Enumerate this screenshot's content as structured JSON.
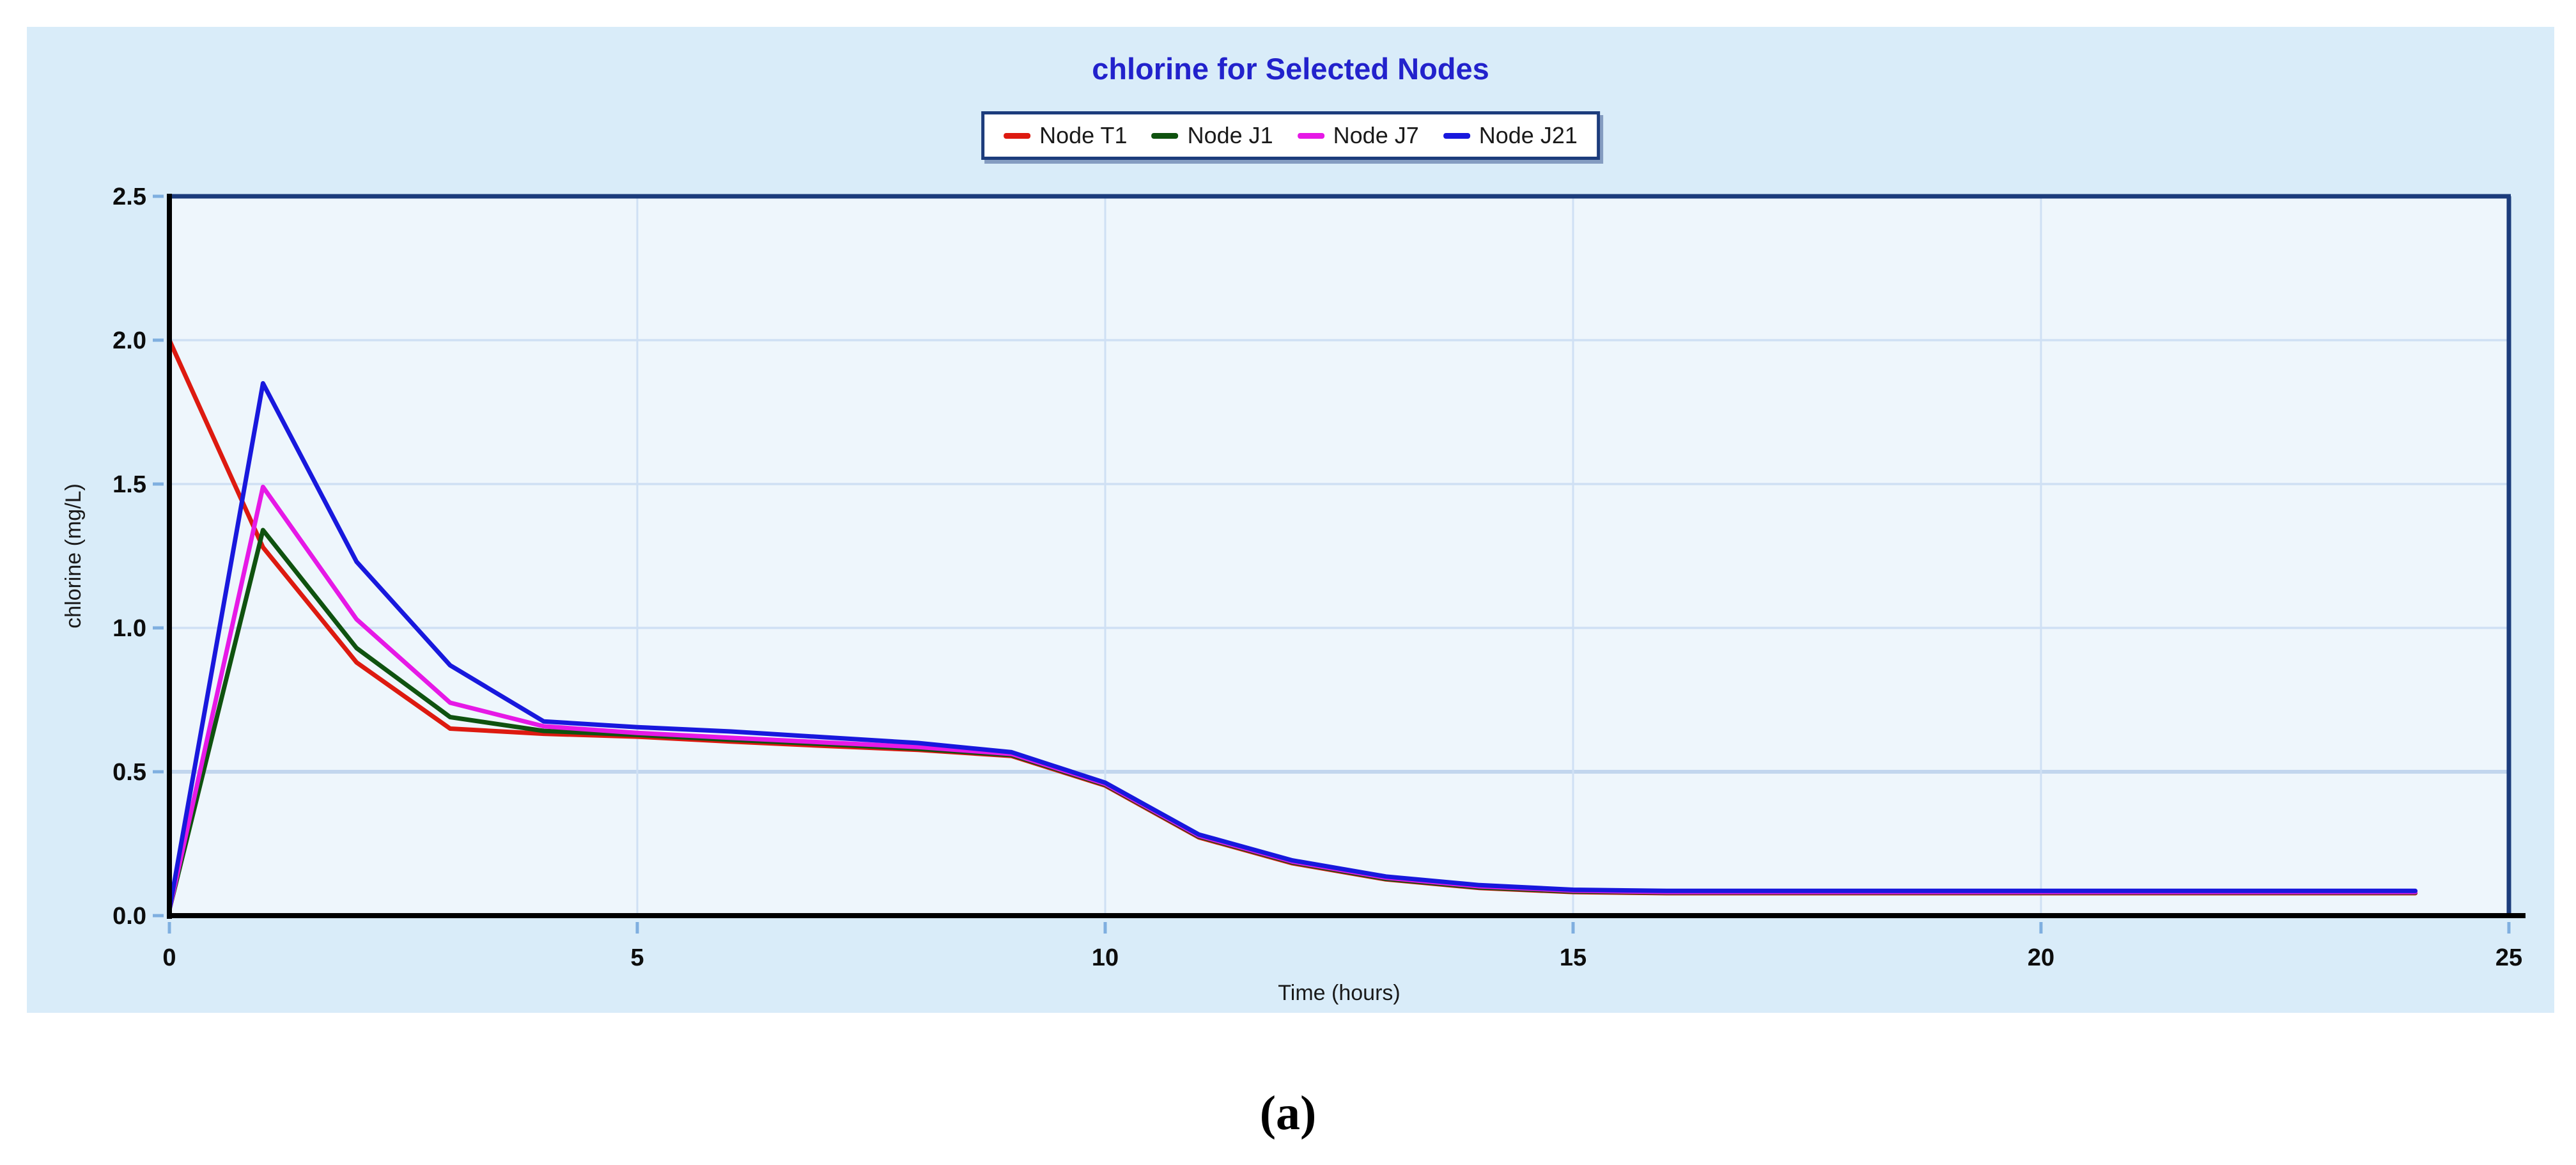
{
  "caption": "(a)",
  "style_colors": {
    "panel_bg": "#d9ecf9",
    "plot_bg": "#eef6fc",
    "frame": "#1c3c7c",
    "axis": "#000000",
    "grid": "#cfe0f4",
    "grid_bold": "#c2d6ee",
    "tick": "#7fafe0",
    "legend_border": "#1c3c7c",
    "legend_bg": "#ffffff"
  },
  "chart_data": {
    "type": "line",
    "title": "chlorine for Selected Nodes",
    "title_color": "#2222cc",
    "xlabel": "Time (hours)",
    "ylabel": "chlorine (mg/L)",
    "xlim": [
      0,
      25
    ],
    "ylim": [
      0,
      2.5
    ],
    "x_tick_labels": [
      "0",
      "5",
      "10",
      "15",
      "20",
      "25"
    ],
    "y_tick_labels": [
      "0.0",
      "0.5",
      "1.0",
      "1.5",
      "2.0",
      "2.5"
    ],
    "grid": true,
    "legend_position": "top-center",
    "x": [
      0,
      1,
      2,
      3,
      4,
      5,
      6,
      7,
      8,
      9,
      10,
      11,
      12,
      13,
      14,
      15,
      16,
      17,
      18,
      19,
      20,
      21,
      22,
      23,
      24
    ],
    "series": [
      {
        "name": "Node T1",
        "color": "#dd1a10",
        "values": [
          2.0,
          1.28,
          0.88,
          0.65,
          0.632,
          0.622,
          0.605,
          0.59,
          0.576,
          0.555,
          0.452,
          0.272,
          0.182,
          0.126,
          0.096,
          0.082,
          0.078,
          0.078,
          0.078,
          0.078,
          0.078,
          0.078,
          0.078,
          0.078,
          0.078
        ]
      },
      {
        "name": "Node J1",
        "color": "#0f520f",
        "values": [
          0.02,
          1.34,
          0.93,
          0.69,
          0.642,
          0.628,
          0.611,
          0.596,
          0.58,
          0.558,
          0.455,
          0.275,
          0.185,
          0.128,
          0.098,
          0.084,
          0.08,
          0.08,
          0.08,
          0.08,
          0.08,
          0.08,
          0.08,
          0.08,
          0.08
        ]
      },
      {
        "name": "Node J7",
        "color": "#e619e6",
        "values": [
          0.02,
          1.49,
          1.03,
          0.74,
          0.658,
          0.635,
          0.618,
          0.602,
          0.586,
          0.562,
          0.458,
          0.278,
          0.188,
          0.132,
          0.102,
          0.087,
          0.082,
          0.082,
          0.082,
          0.082,
          0.082,
          0.082,
          0.082,
          0.082,
          0.082
        ]
      },
      {
        "name": "Node J21",
        "color": "#1818dd",
        "values": [
          0.02,
          1.85,
          1.23,
          0.87,
          0.675,
          0.655,
          0.64,
          0.62,
          0.6,
          0.568,
          0.462,
          0.282,
          0.192,
          0.136,
          0.106,
          0.09,
          0.086,
          0.086,
          0.086,
          0.086,
          0.086,
          0.086,
          0.086,
          0.086,
          0.086
        ]
      }
    ]
  }
}
